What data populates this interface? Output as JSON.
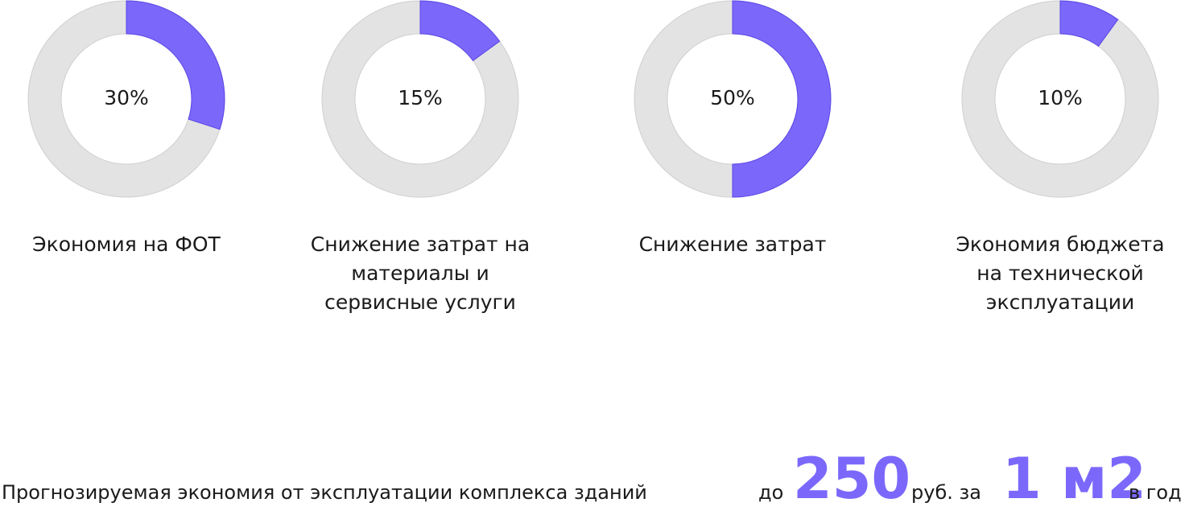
{
  "chart_data": [
    {
      "type": "pie",
      "donut": true,
      "title": "Экономия на ФОТ",
      "values": [
        30
      ],
      "value_labels": [
        "30%"
      ],
      "color": "#7b68fb"
    },
    {
      "type": "pie",
      "donut": true,
      "title": "Снижение затрат на материалы и сервисные услуги",
      "values": [
        15
      ],
      "value_labels": [
        "15%"
      ],
      "color": "#7b68fb"
    },
    {
      "type": "pie",
      "donut": true,
      "title": "Снижение затрат",
      "values": [
        50
      ],
      "value_labels": [
        "50%"
      ],
      "color": "#7b68fb"
    },
    {
      "type": "pie",
      "donut": true,
      "title": "Экономия бюджета на технической эксплуатации",
      "values": [
        10
      ],
      "value_labels": [
        "10%"
      ],
      "color": "#7b68fb"
    }
  ],
  "footer": {
    "text": "Прогнозируемая экономия от эксплуатации комплекса зданий",
    "prefix": "до",
    "amount": 250,
    "unit": "руб. за",
    "area": "1 м2",
    "period": "в год"
  }
}
